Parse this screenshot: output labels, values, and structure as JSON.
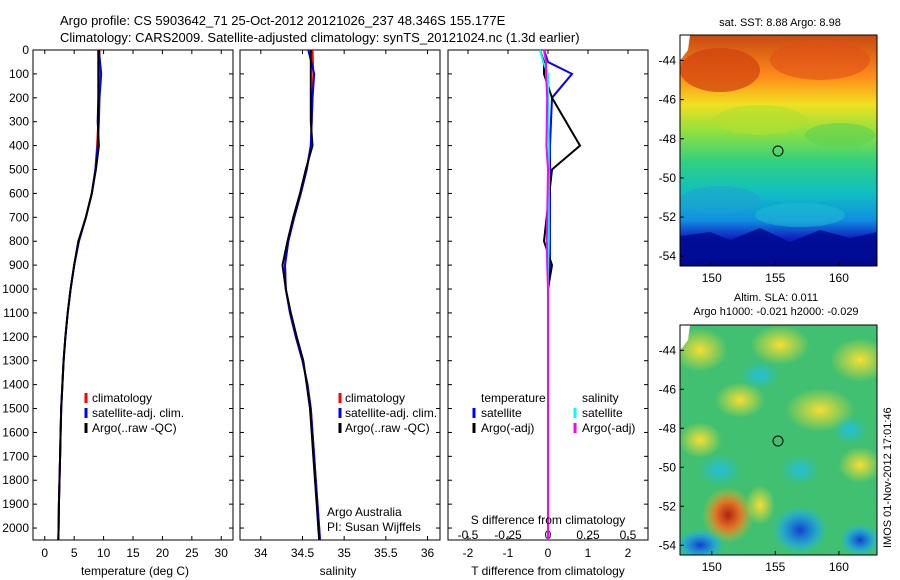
{
  "header": {
    "title_line1": "Argo profile: CS 5903642_71 25-Oct-2012 20121026_237 48.346S 155.177E",
    "title_line2": "Climatology: CARS2009. Satellite-adjusted climatology: synTS_20121024.nc (1.3d earlier)"
  },
  "depth_ticks": [
    "0",
    "100",
    "200",
    "300",
    "400",
    "500",
    "600",
    "700",
    "800",
    "900",
    "1000",
    "1100",
    "1200",
    "1300",
    "1400",
    "1500",
    "1600",
    "1700",
    "1800",
    "1900",
    "2000"
  ],
  "panels": {
    "temperature": {
      "xlabel": "temperature (deg C)",
      "xticks": [
        "0",
        "5",
        "10",
        "15",
        "20",
        "25",
        "30"
      ],
      "legend": [
        "climatology",
        "satellite-adj. clim.",
        "Argo(..raw -QC)"
      ]
    },
    "salinity": {
      "xlabel": "salinity",
      "xticks": [
        "34",
        "34.5",
        "35",
        "35.5",
        "36"
      ],
      "legend": [
        "climatology",
        "satellite-adj. clim.",
        "Argo(..raw -QC)"
      ],
      "credit_line1": "Argo Australia",
      "credit_line2": "PI: Susan Wijffels"
    },
    "difference": {
      "xlabel": "T difference from climatology",
      "top_label": "S difference from climatology",
      "xticks_bottom": [
        "-2",
        "-1",
        "0",
        "1",
        "2"
      ],
      "xticks_top": [
        "-0.5",
        "-0.25",
        "0",
        "0.25",
        "0.5"
      ],
      "legend_temp_head": "temperature",
      "legend_sal_head": "salinity",
      "legend_temp": [
        "satellite",
        "Argo(-adj)"
      ],
      "legend_sal": [
        "satellite",
        "Argo(-adj)"
      ]
    }
  },
  "maps": {
    "sst_title": "sat. SST: 8.88 Argo: 8.98",
    "sla_title1": "Altim. SLA: 0.011",
    "sla_title2": "Argo h1000: -0.021 h2000: -0.029",
    "lat_ticks": [
      "-44",
      "-46",
      "-48",
      "-50",
      "-52",
      "-54"
    ],
    "lon_ticks": [
      "150",
      "155",
      "160"
    ]
  },
  "footer": {
    "timestamp": "IMOS 01-Nov-2012 17:01:46"
  },
  "colors": {
    "climatology": "#ff0000",
    "satellite_adj": "#0000ff",
    "argo": "#000000",
    "sal_satellite": "#00ffff",
    "sal_argo": "#ff00ff"
  },
  "chart_data": [
    {
      "type": "line",
      "title": "",
      "xlabel": "temperature (deg C)",
      "ylabel": "",
      "xlim": [
        -2,
        32
      ],
      "ylim": [
        2050,
        0
      ],
      "series": [
        {
          "name": "climatology",
          "x": [
            9.3,
            9.3,
            9.2,
            9.1,
            8.9,
            8.6,
            8.0,
            7.0,
            5.8,
            5.0,
            4.4,
            3.9,
            3.5,
            3.2,
            3.0,
            2.8,
            2.7,
            2.6,
            2.5,
            2.4,
            2.35,
            2.3
          ],
          "y": [
            0,
            100,
            200,
            300,
            400,
            500,
            600,
            700,
            800,
            900,
            1000,
            1100,
            1200,
            1300,
            1400,
            1500,
            1600,
            1700,
            1800,
            1900,
            2000,
            2050
          ]
        },
        {
          "name": "satellite-adj. clim.",
          "x": [
            9.2,
            9.6,
            9.3,
            9.2,
            9.0,
            8.6,
            8.0,
            7.0,
            5.8,
            5.0,
            4.4,
            3.9,
            3.5,
            3.2,
            3.0,
            2.8,
            2.7,
            2.6,
            2.5,
            2.4,
            2.35,
            2.3
          ],
          "y": [
            0,
            100,
            200,
            300,
            400,
            500,
            600,
            700,
            800,
            900,
            1000,
            1100,
            1200,
            1300,
            1400,
            1500,
            1600,
            1700,
            1800,
            1900,
            2000,
            2050
          ]
        },
        {
          "name": "Argo(..raw -QC)",
          "x": [
            9.1,
            9.1,
            9.1,
            9.0,
            9.2,
            8.7,
            8.0,
            7.0,
            5.7,
            5.0,
            4.4,
            3.9,
            3.5,
            3.2,
            3.0,
            2.8,
            2.7,
            2.6,
            2.5,
            2.4,
            2.35,
            2.3
          ],
          "y": [
            0,
            100,
            200,
            300,
            400,
            500,
            600,
            700,
            800,
            900,
            1000,
            1100,
            1200,
            1300,
            1400,
            1500,
            1600,
            1700,
            1800,
            1900,
            2000,
            2050
          ]
        }
      ]
    },
    {
      "type": "line",
      "title": "",
      "xlabel": "salinity",
      "ylabel": "",
      "xlim": [
        33.75,
        36.15
      ],
      "ylim": [
        2050,
        0
      ],
      "series": [
        {
          "name": "climatology",
          "x": [
            34.62,
            34.63,
            34.62,
            34.61,
            34.6,
            34.55,
            34.48,
            34.4,
            34.33,
            34.29,
            34.3,
            34.35,
            34.42,
            34.5,
            34.56,
            34.6,
            34.62,
            34.64,
            34.66,
            34.68,
            34.7,
            34.71
          ],
          "y": [
            0,
            100,
            200,
            300,
            400,
            500,
            600,
            700,
            800,
            900,
            1000,
            1100,
            1200,
            1300,
            1400,
            1500,
            1600,
            1700,
            1800,
            1900,
            2000,
            2050
          ]
        },
        {
          "name": "satellite-adj. clim.",
          "x": [
            34.57,
            34.64,
            34.62,
            34.61,
            34.6,
            34.55,
            34.48,
            34.4,
            34.33,
            34.29,
            34.3,
            34.35,
            34.42,
            34.5,
            34.56,
            34.6,
            34.62,
            34.64,
            34.66,
            34.68,
            34.7,
            34.71
          ],
          "y": [
            0,
            100,
            200,
            300,
            400,
            500,
            600,
            700,
            800,
            900,
            1000,
            1100,
            1200,
            1300,
            1400,
            1500,
            1600,
            1700,
            1800,
            1900,
            2000,
            2050
          ]
        },
        {
          "name": "Argo(..raw -QC)",
          "x": [
            34.6,
            34.6,
            34.6,
            34.6,
            34.62,
            34.54,
            34.47,
            34.39,
            34.32,
            34.26,
            34.3,
            34.36,
            34.43,
            34.51,
            34.55,
            34.59,
            34.61,
            34.63,
            34.65,
            34.67,
            34.69,
            34.7
          ],
          "y": [
            0,
            100,
            200,
            300,
            400,
            500,
            600,
            700,
            800,
            900,
            1000,
            1100,
            1200,
            1300,
            1400,
            1500,
            1600,
            1700,
            1800,
            1900,
            2000,
            2050
          ]
        }
      ]
    },
    {
      "type": "line",
      "title": "",
      "xlabel": "T difference from climatology",
      "ylabel": "",
      "xlim": [
        -2.5,
        2.5
      ],
      "ylim": [
        2050,
        0
      ],
      "series": [
        {
          "name": "temperature satellite",
          "x": [
            -0.1,
            0.0,
            0.6,
            0.1,
            0.05,
            0.05,
            0.05,
            0.05,
            0.0,
            0.0,
            0.0,
            0.0,
            0.0,
            0.0,
            0.0,
            0.0,
            0.0,
            0.0,
            0.0,
            0.0,
            0.0
          ],
          "y": [
            0,
            50,
            100,
            200,
            400,
            600,
            800,
            900,
            1000,
            1100,
            1200,
            1300,
            1400,
            1500,
            1600,
            1700,
            1800,
            1900,
            2000,
            2020,
            2050
          ]
        },
        {
          "name": "temperature Argo(-adj)",
          "x": [
            -0.2,
            -0.1,
            -0.1,
            0.1,
            0.8,
            0.1,
            -0.1,
            0.1,
            0.0,
            0.0,
            0.0,
            0.0,
            0.0,
            0.0,
            0.0,
            0.0,
            0.0,
            0.0,
            0.0,
            0.0,
            0.0
          ],
          "y": [
            0,
            50,
            100,
            200,
            400,
            500,
            800,
            900,
            1000,
            1100,
            1200,
            1300,
            1400,
            1500,
            1600,
            1700,
            1800,
            1900,
            2000,
            2020,
            2050
          ]
        },
        {
          "name": "salinity satellite",
          "x": [
            -0.2,
            -0.12,
            0.0,
            0.0,
            0.02,
            0.02,
            0.02,
            0.0,
            0.0,
            0.0,
            0.0,
            0.0,
            0.0,
            0.0,
            0.0,
            0.0,
            0.0,
            0.0,
            0.0,
            0.0,
            0.0
          ],
          "y": [
            0,
            50,
            100,
            200,
            400,
            600,
            800,
            900,
            1000,
            1100,
            1200,
            1300,
            1400,
            1500,
            1600,
            1700,
            1800,
            1900,
            2000,
            2020,
            2050
          ]
        },
        {
          "name": "salinity Argo(-adj)",
          "x": [
            -0.1,
            -0.05,
            -0.05,
            -0.02,
            -0.04,
            0.0,
            -0.03,
            -0.02,
            0.0,
            0.0,
            0.0,
            0.0,
            0.0,
            0.0,
            0.0,
            0.0,
            0.0,
            0.0,
            0.0,
            0.0,
            0.0
          ],
          "y": [
            0,
            50,
            100,
            200,
            400,
            500,
            800,
            900,
            1000,
            1100,
            1200,
            1300,
            1400,
            1500,
            1600,
            1700,
            1800,
            1900,
            2000,
            2020,
            2050
          ]
        }
      ]
    },
    {
      "type": "heatmap",
      "title": "sat. SST: 8.88 Argo: 8.98",
      "xlabel": "",
      "ylabel": "",
      "xlim": [
        147.5,
        163
      ],
      "ylim": [
        -54.5,
        -42.7
      ],
      "marker": {
        "x": 155.2,
        "y": -48.35
      }
    },
    {
      "type": "heatmap",
      "title": "Altim. SLA: 0.011",
      "xlabel": "",
      "ylabel": "",
      "xlim": [
        147.5,
        163
      ],
      "ylim": [
        -54.5,
        -42.7
      ],
      "marker": {
        "x": 155.2,
        "y": -48.35
      }
    }
  ]
}
